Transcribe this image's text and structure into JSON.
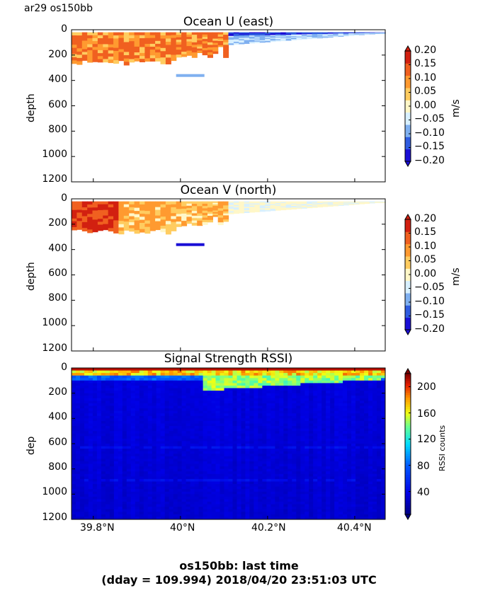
{
  "header": {
    "label": "ar29 os150bb"
  },
  "footer": {
    "line1": "os150bb: last time",
    "line2": "(dday = 109.994) 2018/04/20 23:51:03 UTC"
  },
  "chart_data": [
    {
      "type": "heatmap",
      "title": "Ocean U (east)",
      "ylabel": "depth",
      "yticks": [
        "0",
        "200",
        "400",
        "600",
        "800",
        "1000",
        "1200"
      ],
      "ylim": [
        1200,
        0
      ],
      "xlim": [
        39.75,
        40.47
      ],
      "colorbar": {
        "label": "m/s",
        "ticks": [
          "0.20",
          "0.15",
          "0.10",
          "0.05",
          "0.00",
          "−0.05",
          "−0.10",
          "−0.15",
          "−0.20"
        ],
        "colors": [
          "#1a0fd6",
          "#2f5ce0",
          "#7fb0f0",
          "#d8f0ff",
          "#fff7c8",
          "#ffcc60",
          "#ff9a30",
          "#f06020",
          "#d22010"
        ]
      }
    },
    {
      "type": "heatmap",
      "title": "Ocean V (north)",
      "ylabel": "depth",
      "yticks": [
        "0",
        "200",
        "400",
        "600",
        "800",
        "1000",
        "1200"
      ],
      "ylim": [
        1200,
        0
      ],
      "xlim": [
        39.75,
        40.47
      ],
      "colorbar": {
        "label": "m/s",
        "ticks": [
          "0.20",
          "0.15",
          "0.10",
          "0.05",
          "0.00",
          "−0.05",
          "−0.10",
          "−0.15",
          "−0.20"
        ],
        "colors": [
          "#1a0fd6",
          "#2f5ce0",
          "#7fb0f0",
          "#d8f0ff",
          "#fff7c8",
          "#ffcc60",
          "#ff9a30",
          "#f06020",
          "#d22010"
        ]
      }
    },
    {
      "type": "heatmap",
      "title": "Signal Strength RSSI)",
      "ylabel": "dep",
      "yticks": [
        "0",
        "200",
        "400",
        "600",
        "800",
        "1000",
        "1200"
      ],
      "xticks": [
        "39.8°N",
        "40°N",
        "40.2°N",
        "40.4°N"
      ],
      "xtick_values": [
        39.8,
        40.0,
        40.2,
        40.4
      ],
      "ylim": [
        1200,
        0
      ],
      "xlim": [
        39.75,
        40.47
      ],
      "colorbar": {
        "label": "RSSI counts",
        "ticks": [
          "200",
          "160",
          "120",
          "80",
          "40"
        ],
        "range": [
          5,
          220
        ]
      }
    }
  ]
}
